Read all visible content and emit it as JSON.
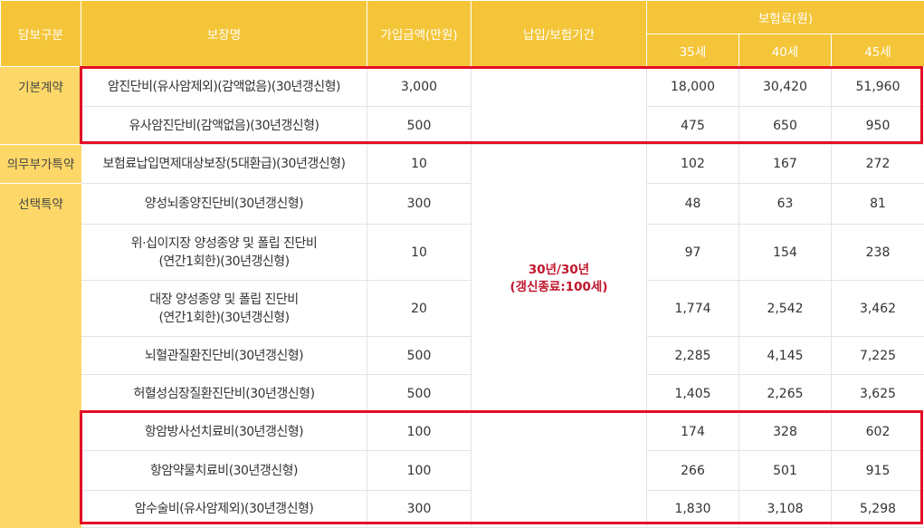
{
  "header": {
    "category": "담보구분",
    "coverage": "보장명",
    "amount": "가입금액(만원)",
    "period": "납입/보험기간",
    "premium": "보험료(원)",
    "ages": [
      "35세",
      "40세",
      "45세"
    ]
  },
  "categories": {
    "basic": "기본계약",
    "mandatory": "의무부가특약",
    "optional": "선택특약"
  },
  "period_value_line1": "30년/30년",
  "period_value_line2": "(갱신종료:100세)",
  "rows": [
    {
      "name": "암진단비(유사암제외)(감액없음)(30년갱신형)",
      "amount": "3,000",
      "p35": "18,000",
      "p40": "30,420",
      "p45": "51,960"
    },
    {
      "name": "유사암진단비(감액없음)(30년갱신형)",
      "amount": "500",
      "p35": "475",
      "p40": "650",
      "p45": "950"
    },
    {
      "name": "보험료납입면제대상보장(5대환급)(30년갱신형)",
      "amount": "10",
      "p35": "102",
      "p40": "167",
      "p45": "272"
    },
    {
      "name": "양성뇌종양진단비(30년갱신형)",
      "amount": "300",
      "p35": "48",
      "p40": "63",
      "p45": "81"
    },
    {
      "name_line1": "위·십이지장 양성종양 및 폴립 진단비",
      "name_line2": "(연간1회한)(30년갱신형)",
      "amount": "10",
      "p35": "97",
      "p40": "154",
      "p45": "238"
    },
    {
      "name_line1": "대장 양성종양 및 폴립 진단비",
      "name_line2": "(연간1회한)(30년갱신형)",
      "amount": "20",
      "p35": "1,774",
      "p40": "2,542",
      "p45": "3,462"
    },
    {
      "name": "뇌혈관질환진단비(30년갱신형)",
      "amount": "500",
      "p35": "2,285",
      "p40": "4,145",
      "p45": "7,225"
    },
    {
      "name": "허혈성심장질환진단비(30년갱신형)",
      "amount": "500",
      "p35": "1,405",
      "p40": "2,265",
      "p45": "3,625"
    },
    {
      "name": "항암방사선치료비(30년갱신형)",
      "amount": "100",
      "p35": "174",
      "p40": "328",
      "p45": "602"
    },
    {
      "name": "항암약물치료비(30년갱신형)",
      "amount": "100",
      "p35": "266",
      "p40": "501",
      "p45": "915"
    },
    {
      "name": "암수술비(유사암제외)(30년갱신형)",
      "amount": "300",
      "p35": "1,830",
      "p40": "3,108",
      "p45": "5,298"
    }
  ]
}
